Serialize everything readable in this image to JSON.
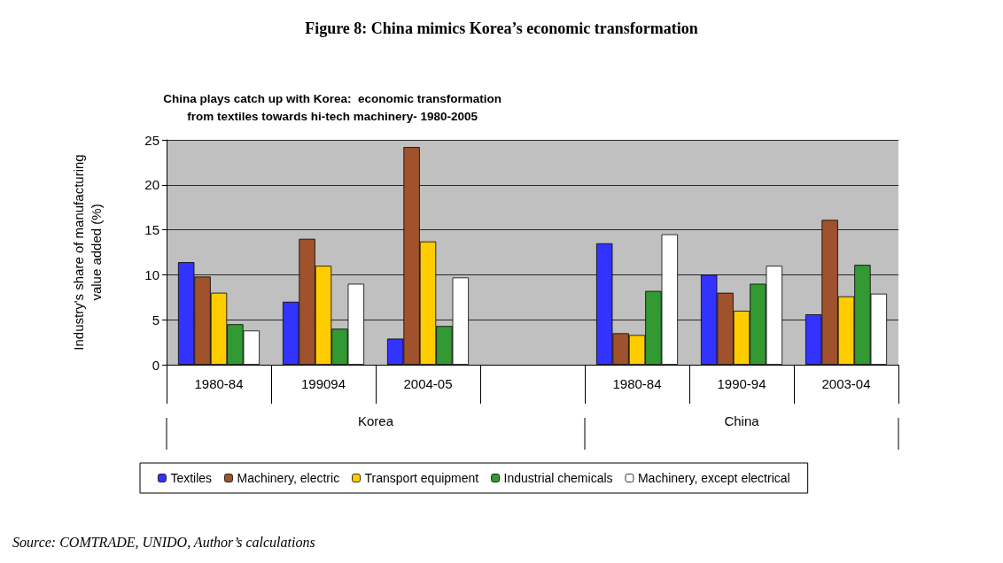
{
  "chart_data": {
    "type": "bar",
    "title": "Figure 8: China mimics Korea’s economic transformation",
    "subtitle": "China plays catch up with Korea:  economic transformation\nfrom textiles towards hi-tech machinery- 1980-2005",
    "ylabel": "Industry's share of manufacturing\nvalue added (%)",
    "categories": [
      "1980-84",
      "199094",
      "2004-05",
      null,
      "1980-84",
      "1990-94",
      "2003-04"
    ],
    "series": [
      {
        "name": "Textiles",
        "color": "#3333ff",
        "values": [
          11.4,
          7,
          2.9,
          null,
          13.5,
          10,
          5.6
        ]
      },
      {
        "name": "Machinery, electric",
        "color": "#a0522d",
        "values": [
          9.8,
          14,
          24.2,
          null,
          3.5,
          8,
          16.1
        ]
      },
      {
        "name": "Transport equipment",
        "color": "#ffcc00",
        "values": [
          8,
          11,
          13.7,
          null,
          3.3,
          6,
          7.6
        ]
      },
      {
        "name": "Industrial chemicals",
        "color": "#339933",
        "values": [
          4.5,
          4,
          4.3,
          null,
          8.2,
          9,
          11.1
        ]
      },
      {
        "name": "Machinery, except electrical",
        "color": "#ffffff",
        "values": [
          3.8,
          9,
          9.7,
          null,
          14.5,
          11,
          7.9
        ]
      }
    ],
    "ylim": [
      0,
      25
    ],
    "yticks": [
      0,
      5,
      10,
      15,
      20,
      25
    ],
    "grid": "y",
    "legend": "bottom",
    "annotations": [
      "Korea",
      "China",
      "Source: COMTRADE, UNIDO, Author’s calculations"
    ]
  }
}
